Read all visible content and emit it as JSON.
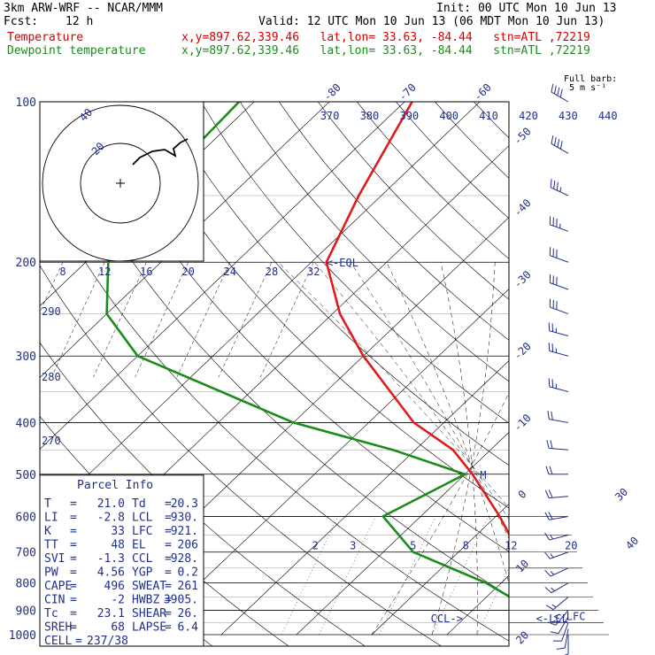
{
  "header": {
    "model": "3km ARW-WRF -- NCAR/MMM",
    "init": "Init: 00 UTC Mon 10 Jun 13",
    "fcst_label": "Fcst:",
    "fcst_value": "12 h",
    "valid": "Valid: 12 UTC Mon 10 Jun 13 (06 MDT Mon 10 Jun 13)",
    "temp_label": "Temperature",
    "dew_label": "Dewpoint temperature",
    "location": "x,y=897.62,339.46   lat,lon= 33.63, -84.44   stn=ATL ,72219",
    "barb_title": "Full barb:",
    "barb_unit": "5 m s⁻¹"
  },
  "colors": {
    "temperature": "#e01b1b",
    "dewpoint": "#1a8c1a",
    "parcel": "#1f2f8c"
  },
  "chart_data": {
    "type": "line",
    "title": "",
    "y_axis": "pressure (hPa)",
    "pressure_ticks": [
      100,
      200,
      300,
      400,
      500,
      600,
      700,
      800,
      900,
      1000
    ],
    "isotherm_labels": [
      -80,
      -70,
      -60,
      -50,
      -40,
      -30,
      -20,
      -10,
      0,
      10,
      20,
      30,
      40
    ],
    "theta_labels": [
      370,
      380,
      390,
      400,
      410,
      420,
      430,
      440
    ],
    "theta_left_labels": [
      290,
      280,
      270
    ],
    "mixing_ratio_labels": [
      2,
      3,
      5,
      8,
      12,
      20
    ],
    "wind_speed_axis": {
      "unit": "kts",
      "labels": [
        8,
        12,
        16,
        20,
        24,
        28,
        32
      ]
    },
    "hodograph_ring_labels": [
      20,
      40
    ],
    "series": [
      {
        "name": "Temperature",
        "points": [
          [
            100,
            -69
          ],
          [
            150,
            -63
          ],
          [
            200,
            -58
          ],
          [
            250,
            -49
          ],
          [
            300,
            -40
          ],
          [
            400,
            -24
          ],
          [
            450,
            -15
          ],
          [
            500,
            -9
          ],
          [
            600,
            0.5
          ],
          [
            700,
            8
          ],
          [
            800,
            14
          ],
          [
            900,
            20
          ],
          [
            950,
            22
          ],
          [
            1000,
            21
          ]
        ]
      },
      {
        "name": "Dewpoint temperature",
        "points": [
          [
            100,
            -92
          ],
          [
            150,
            -91
          ],
          [
            200,
            -87
          ],
          [
            250,
            -80
          ],
          [
            300,
            -70
          ],
          [
            400,
            -40
          ],
          [
            450,
            -23
          ],
          [
            500,
            -10
          ],
          [
            600,
            -15
          ],
          [
            700,
            -6
          ],
          [
            800,
            8
          ],
          [
            900,
            18
          ],
          [
            950,
            19.5
          ],
          [
            1000,
            20.3
          ]
        ]
      }
    ],
    "markers": [
      {
        "text": "<-EQL",
        "p": 200,
        "t": -58
      },
      {
        "text": "CCL->",
        "p": 930,
        "t": 5.5
      },
      {
        "text": "<-LCL",
        "p": 930,
        "t": 19.5
      },
      {
        "text": "<-LFC",
        "p": 921,
        "t": 21.5
      },
      {
        "text": "M",
        "p": 500,
        "t": -8
      }
    ],
    "wind_barbs": [
      {
        "p": 100,
        "dir": 300,
        "spd": 40
      },
      {
        "p": 125,
        "dir": 300,
        "spd": 40
      },
      {
        "p": 150,
        "dir": 295,
        "spd": 35
      },
      {
        "p": 175,
        "dir": 290,
        "spd": 35
      },
      {
        "p": 200,
        "dir": 290,
        "spd": 30
      },
      {
        "p": 225,
        "dir": 290,
        "spd": 30
      },
      {
        "p": 250,
        "dir": 290,
        "spd": 30
      },
      {
        "p": 275,
        "dir": 285,
        "spd": 25
      },
      {
        "p": 300,
        "dir": 285,
        "spd": 25
      },
      {
        "p": 350,
        "dir": 285,
        "spd": 25
      },
      {
        "p": 400,
        "dir": 280,
        "spd": 20
      },
      {
        "p": 450,
        "dir": 275,
        "spd": 20
      },
      {
        "p": 500,
        "dir": 270,
        "spd": 20
      },
      {
        "p": 550,
        "dir": 265,
        "spd": 20
      },
      {
        "p": 600,
        "dir": 260,
        "spd": 20
      },
      {
        "p": 650,
        "dir": 255,
        "spd": 15
      },
      {
        "p": 700,
        "dir": 250,
        "spd": 15
      },
      {
        "p": 750,
        "dir": 245,
        "spd": 15
      },
      {
        "p": 800,
        "dir": 240,
        "spd": 15
      },
      {
        "p": 850,
        "dir": 230,
        "spd": 15
      },
      {
        "p": 900,
        "dir": 220,
        "spd": 15
      },
      {
        "p": 925,
        "dir": 210,
        "spd": 10
      },
      {
        "p": 950,
        "dir": 200,
        "spd": 10
      },
      {
        "p": 975,
        "dir": 190,
        "spd": 10
      },
      {
        "p": 1000,
        "dir": 180,
        "spd": 5
      }
    ]
  },
  "parcel_info": {
    "title": "Parcel Info",
    "rows": [
      [
        {
          "k": "T",
          "v": "21.0"
        },
        {
          "k": "Td",
          "v": "20.3"
        }
      ],
      [
        {
          "k": "LI",
          "v": "-2.8"
        },
        {
          "k": "LCL",
          "v": "930."
        }
      ],
      [
        {
          "k": "K",
          "v": "33"
        },
        {
          "k": "LFC",
          "v": "921."
        }
      ],
      [
        {
          "k": "TT",
          "v": "48"
        },
        {
          "k": "EL",
          "v": "206"
        }
      ],
      [
        {
          "k": "SVI",
          "v": "-1.3"
        },
        {
          "k": "CCL",
          "v": "928."
        }
      ],
      [
        {
          "k": "PW",
          "v": "4.56"
        },
        {
          "k": "YGP",
          "v": "0.2"
        }
      ],
      [
        {
          "k": "CAPE",
          "v": "496"
        },
        {
          "k": "SWEAT",
          "v": "261"
        }
      ],
      [
        {
          "k": "CIN",
          "v": "-2"
        },
        {
          "k": "HWBZ",
          "v": "3905."
        }
      ],
      [
        {
          "k": "Tc",
          "v": "23.1"
        },
        {
          "k": "SHEAR",
          "v": "26."
        }
      ],
      [
        {
          "k": "SREH",
          "v": "68"
        },
        {
          "k": "LAPSE",
          "v": "6.4"
        }
      ],
      [
        {
          "k": "CELL",
          "v": "237/38"
        }
      ]
    ]
  }
}
